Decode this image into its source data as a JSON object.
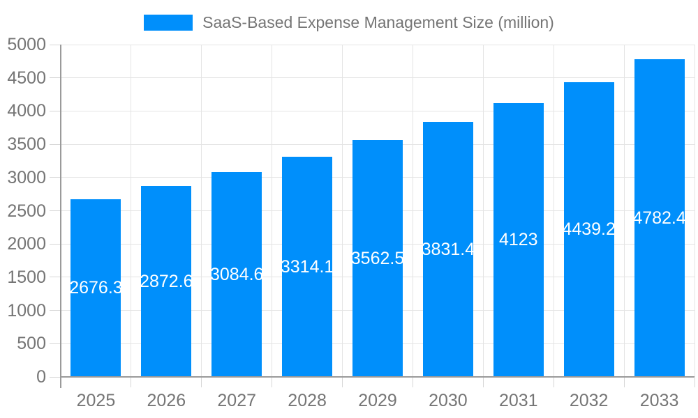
{
  "legend": {
    "label": "SaaS-Based Expense Management Size (million)"
  },
  "colors": {
    "bar": "#008ffb",
    "axis_line": "#9a9a9a",
    "gridline": "#e4e4e4",
    "tick_mark": "#d6d6d6",
    "axis_text": "#757575",
    "bar_label_text": "#ffffff",
    "background": "#ffffff"
  },
  "chart_data": {
    "type": "bar",
    "title": "SaaS-Based Expense Management Size (million)",
    "xlabel": "",
    "ylabel": "",
    "categories": [
      "2025",
      "2026",
      "2027",
      "2028",
      "2029",
      "2030",
      "2031",
      "2032",
      "2033"
    ],
    "values": [
      2676.3,
      2872.6,
      3084.6,
      3314.1,
      3562.5,
      3831.4,
      4123,
      4439.2,
      4782.4
    ],
    "bar_labels": [
      "2676.3",
      "2872.6",
      "3084.6",
      "3314.1",
      "3562.5",
      "3831.4",
      "4123",
      "4439.2",
      "4782.4"
    ],
    "ylim": [
      0,
      5000
    ],
    "ytick_interval": 500,
    "ytick_labels": [
      "0",
      "500",
      "1000",
      "1500",
      "2000",
      "2500",
      "3000",
      "3500",
      "4000",
      "4500",
      "5000"
    ],
    "grid": true,
    "legend_position": "top-center",
    "value_label_position": "inside-middle"
  }
}
